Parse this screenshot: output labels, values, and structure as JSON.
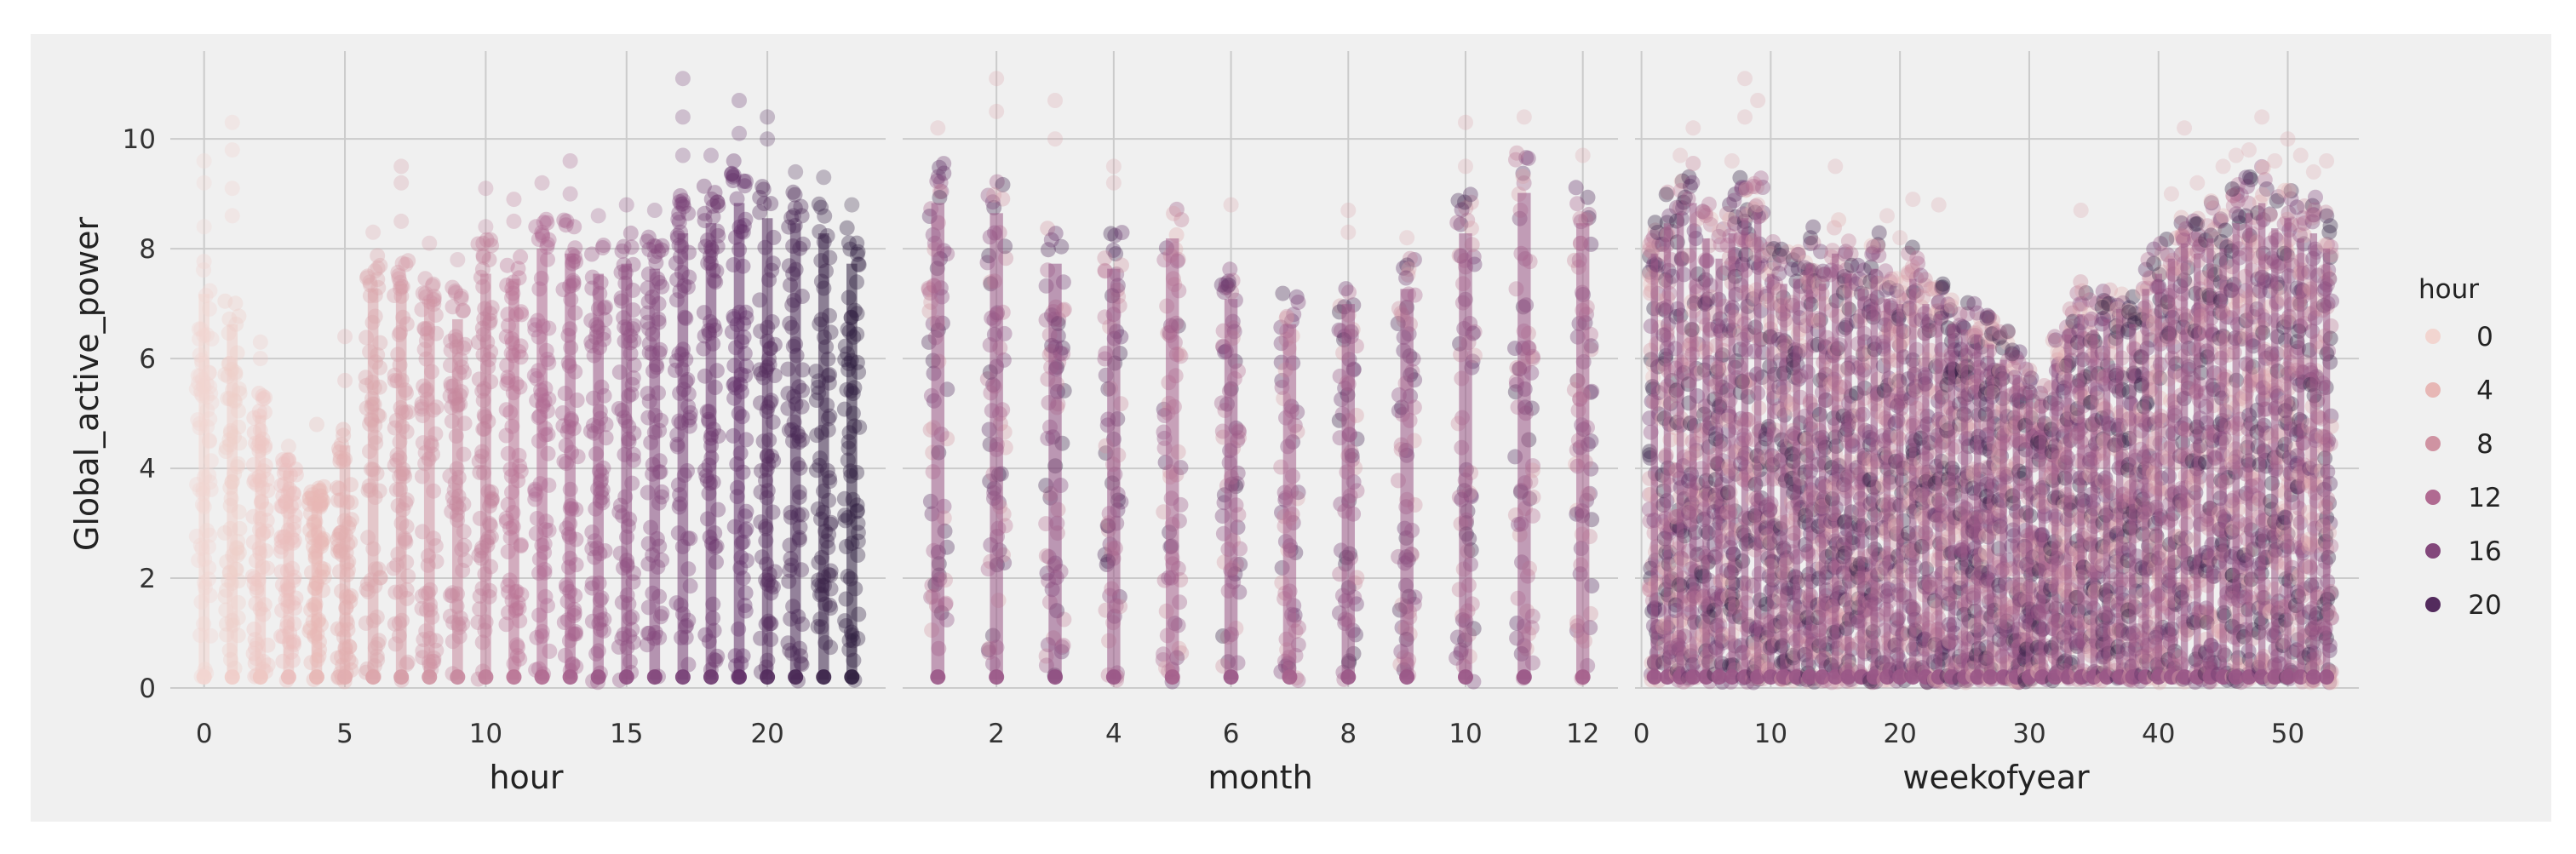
{
  "chart_data": {
    "type": "scatter",
    "description_y": "Global_active_power",
    "background": "#f0f0f0",
    "palette": [
      "#f2d5d0",
      "#e8b8b6",
      "#d196a3",
      "#b56f93",
      "#8b4c80",
      "#5e2e66",
      "#2d1e3e"
    ],
    "marker_alpha": 0.35,
    "shared_y": {
      "label": "Global_active_power",
      "ylim": [
        0,
        11.6
      ],
      "ticks": [
        0,
        2,
        4,
        6,
        8,
        10
      ],
      "tick_labels": [
        "0",
        "2",
        "4",
        "6",
        "8",
        "10"
      ]
    },
    "panels": [
      {
        "xlabel": "hour",
        "xlim": [
          -1.2,
          24.2
        ],
        "ticks": [
          0,
          5,
          10,
          15,
          20
        ],
        "tick_labels": [
          "0",
          "5",
          "10",
          "15",
          "20"
        ],
        "columns": [
          {
            "x": 0,
            "hue": 0,
            "max": 7.8,
            "outliers": [
              8.4,
              9.2,
              9.6
            ]
          },
          {
            "x": 1,
            "hue": 1,
            "max": 7.2,
            "outliers": [
              8.6,
              9.1,
              9.8,
              10.3
            ]
          },
          {
            "x": 2,
            "hue": 2,
            "max": 5.4,
            "outliers": [
              6.0,
              6.3
            ]
          },
          {
            "x": 3,
            "hue": 3,
            "max": 4.3,
            "outliers": [
              4.4
            ]
          },
          {
            "x": 4,
            "hue": 4,
            "max": 3.7,
            "outliers": [
              4.8
            ]
          },
          {
            "x": 5,
            "hue": 5,
            "max": 4.8,
            "outliers": [
              5.6,
              6.4
            ]
          },
          {
            "x": 6,
            "hue": 6,
            "max": 7.9,
            "outliers": [
              8.3
            ]
          },
          {
            "x": 7,
            "hue": 7,
            "max": 8.0,
            "outliers": [
              8.5,
              9.2,
              9.5
            ]
          },
          {
            "x": 8,
            "hue": 8,
            "max": 7.7,
            "outliers": [
              8.1
            ]
          },
          {
            "x": 9,
            "hue": 9,
            "max": 7.3,
            "outliers": [
              7.8
            ]
          },
          {
            "x": 10,
            "hue": 10,
            "max": 8.2,
            "outliers": [
              8.4,
              9.1
            ]
          },
          {
            "x": 11,
            "hue": 11,
            "max": 8.1,
            "outliers": [
              8.5,
              8.9
            ]
          },
          {
            "x": 12,
            "hue": 12,
            "max": 8.7,
            "outliers": [
              9.2
            ]
          },
          {
            "x": 13,
            "hue": 13,
            "max": 8.6,
            "outliers": [
              9.0,
              9.6
            ]
          },
          {
            "x": 14,
            "hue": 14,
            "max": 8.2,
            "outliers": [
              8.6
            ]
          },
          {
            "x": 15,
            "hue": 15,
            "max": 8.4,
            "outliers": [
              8.8
            ]
          },
          {
            "x": 16,
            "hue": 16,
            "max": 8.3,
            "outliers": [
              8.7
            ]
          },
          {
            "x": 17,
            "hue": 17,
            "max": 9.0,
            "outliers": [
              9.7,
              10.4,
              11.1
            ]
          },
          {
            "x": 18,
            "hue": 18,
            "max": 9.2,
            "outliers": [
              9.7
            ]
          },
          {
            "x": 19,
            "hue": 19,
            "max": 9.6,
            "outliers": [
              10.1,
              10.7
            ]
          },
          {
            "x": 20,
            "hue": 20,
            "max": 9.3,
            "outliers": [
              10.0,
              10.4
            ]
          },
          {
            "x": 21,
            "hue": 21,
            "max": 9.2,
            "outliers": [
              9.4
            ]
          },
          {
            "x": 22,
            "hue": 22,
            "max": 9.0,
            "outliers": [
              9.3
            ]
          },
          {
            "x": 23,
            "hue": 23,
            "max": 8.4,
            "outliers": [
              8.8
            ]
          }
        ]
      },
      {
        "xlabel": "month",
        "xlim": [
          0.4,
          12.6
        ],
        "ticks": [
          2,
          4,
          6,
          8,
          10,
          12
        ],
        "tick_labels": [
          "2",
          "4",
          "6",
          "8",
          "10",
          "12"
        ],
        "columns": [
          {
            "x": 1,
            "hue": 14,
            "max": 9.6,
            "outliers": [
              10.2
            ]
          },
          {
            "x": 2,
            "hue": 14,
            "max": 9.4,
            "outliers": [
              10.5,
              11.1
            ]
          },
          {
            "x": 3,
            "hue": 15,
            "max": 8.4,
            "outliers": [
              10.0,
              10.7
            ]
          },
          {
            "x": 4,
            "hue": 14,
            "max": 8.3,
            "outliers": [
              9.2,
              9.5
            ]
          },
          {
            "x": 5,
            "hue": 13,
            "max": 8.9,
            "outliers": []
          },
          {
            "x": 6,
            "hue": 14,
            "max": 7.7,
            "outliers": [
              8.8
            ]
          },
          {
            "x": 7,
            "hue": 13,
            "max": 7.2,
            "outliers": []
          },
          {
            "x": 8,
            "hue": 14,
            "max": 7.6,
            "outliers": [
              8.3,
              8.7
            ]
          },
          {
            "x": 9,
            "hue": 14,
            "max": 7.9,
            "outliers": [
              8.2
            ]
          },
          {
            "x": 10,
            "hue": 14,
            "max": 9.0,
            "outliers": [
              9.5,
              10.3
            ]
          },
          {
            "x": 11,
            "hue": 14,
            "max": 9.8,
            "outliers": [
              10.4
            ]
          },
          {
            "x": 12,
            "hue": 13,
            "max": 9.2,
            "outliers": [
              9.7
            ]
          }
        ]
      },
      {
        "xlabel": "weekofyear",
        "xlim": [
          -0.5,
          55.5
        ],
        "ticks": [
          0,
          10,
          20,
          30,
          40,
          50
        ],
        "tick_labels": [
          "0",
          "10",
          "20",
          "30",
          "40",
          "50"
        ],
        "columns": [
          {
            "x": 1,
            "hue": 14,
            "max": 8.6,
            "outliers": []
          },
          {
            "x": 2,
            "hue": 14,
            "max": 9.2,
            "outliers": []
          },
          {
            "x": 3,
            "hue": 14,
            "max": 9.4,
            "outliers": [
              9.7
            ]
          },
          {
            "x": 4,
            "hue": 14,
            "max": 9.6,
            "outliers": [
              10.2
            ]
          },
          {
            "x": 5,
            "hue": 14,
            "max": 8.9,
            "outliers": []
          },
          {
            "x": 6,
            "hue": 14,
            "max": 8.5,
            "outliers": []
          },
          {
            "x": 7,
            "hue": 14,
            "max": 9.0,
            "outliers": [
              9.6
            ]
          },
          {
            "x": 8,
            "hue": 14,
            "max": 9.3,
            "outliers": [
              10.4,
              11.1
            ]
          },
          {
            "x": 9,
            "hue": 14,
            "max": 9.4,
            "outliers": [
              10.7
            ]
          },
          {
            "x": 10,
            "hue": 14,
            "max": 8.2,
            "outliers": []
          },
          {
            "x": 11,
            "hue": 14,
            "max": 8.0,
            "outliers": []
          },
          {
            "x": 12,
            "hue": 14,
            "max": 8.1,
            "outliers": []
          },
          {
            "x": 13,
            "hue": 14,
            "max": 8.4,
            "outliers": []
          },
          {
            "x": 14,
            "hue": 14,
            "max": 8.0,
            "outliers": []
          },
          {
            "x": 15,
            "hue": 14,
            "max": 8.6,
            "outliers": [
              9.5
            ]
          },
          {
            "x": 16,
            "hue": 14,
            "max": 8.2,
            "outliers": []
          },
          {
            "x": 17,
            "hue": 14,
            "max": 7.9,
            "outliers": []
          },
          {
            "x": 18,
            "hue": 14,
            "max": 8.3,
            "outliers": []
          },
          {
            "x": 19,
            "hue": 14,
            "max": 7.7,
            "outliers": [
              8.6
            ]
          },
          {
            "x": 20,
            "hue": 14,
            "max": 7.6,
            "outliers": [
              8.2
            ]
          },
          {
            "x": 21,
            "hue": 14,
            "max": 8.1,
            "outliers": [
              8.9
            ]
          },
          {
            "x": 22,
            "hue": 14,
            "max": 7.6,
            "outliers": []
          },
          {
            "x": 23,
            "hue": 14,
            "max": 7.4,
            "outliers": [
              8.8
            ]
          },
          {
            "x": 24,
            "hue": 14,
            "max": 7.2,
            "outliers": []
          },
          {
            "x": 25,
            "hue": 14,
            "max": 7.1,
            "outliers": []
          },
          {
            "x": 26,
            "hue": 14,
            "max": 7.0,
            "outliers": []
          },
          {
            "x": 27,
            "hue": 14,
            "max": 6.8,
            "outliers": []
          },
          {
            "x": 28,
            "hue": 14,
            "max": 6.5,
            "outliers": []
          },
          {
            "x": 29,
            "hue": 14,
            "max": 6.2,
            "outliers": []
          },
          {
            "x": 30,
            "hue": 14,
            "max": 5.9,
            "outliers": []
          },
          {
            "x": 31,
            "hue": 14,
            "max": 5.7,
            "outliers": []
          },
          {
            "x": 32,
            "hue": 14,
            "max": 6.4,
            "outliers": []
          },
          {
            "x": 33,
            "hue": 14,
            "max": 7.0,
            "outliers": []
          },
          {
            "x": 34,
            "hue": 14,
            "max": 7.4,
            "outliers": [
              8.7
            ]
          },
          {
            "x": 35,
            "hue": 14,
            "max": 7.1,
            "outliers": []
          },
          {
            "x": 36,
            "hue": 14,
            "max": 7.3,
            "outliers": []
          },
          {
            "x": 37,
            "hue": 14,
            "max": 7.5,
            "outliers": []
          },
          {
            "x": 38,
            "hue": 14,
            "max": 7.2,
            "outliers": []
          },
          {
            "x": 39,
            "hue": 14,
            "max": 7.9,
            "outliers": []
          },
          {
            "x": 40,
            "hue": 14,
            "max": 8.2,
            "outliers": []
          },
          {
            "x": 41,
            "hue": 14,
            "max": 8.5,
            "outliers": [
              9.0
            ]
          },
          {
            "x": 42,
            "hue": 14,
            "max": 8.8,
            "outliers": [
              10.2
            ]
          },
          {
            "x": 43,
            "hue": 14,
            "max": 8.6,
            "outliers": [
              9.2
            ]
          },
          {
            "x": 44,
            "hue": 14,
            "max": 8.9,
            "outliers": []
          },
          {
            "x": 45,
            "hue": 14,
            "max": 8.7,
            "outliers": [
              9.5
            ]
          },
          {
            "x": 46,
            "hue": 14,
            "max": 9.2,
            "outliers": [
              9.7
            ]
          },
          {
            "x": 47,
            "hue": 14,
            "max": 9.4,
            "outliers": [
              9.8
            ]
          },
          {
            "x": 48,
            "hue": 14,
            "max": 9.6,
            "outliers": [
              10.4
            ]
          },
          {
            "x": 49,
            "hue": 14,
            "max": 9.1,
            "outliers": [
              9.6
            ]
          },
          {
            "x": 50,
            "hue": 14,
            "max": 9.3,
            "outliers": [
              10.0
            ]
          },
          {
            "x": 51,
            "hue": 14,
            "max": 8.9,
            "outliers": [
              9.7
            ]
          },
          {
            "x": 52,
            "hue": 14,
            "max": 9.0,
            "outliers": [
              9.4
            ]
          },
          {
            "x": 53,
            "hue": 14,
            "max": 8.7,
            "outliers": [
              9.6
            ]
          }
        ]
      }
    ],
    "legend": {
      "title": "hour",
      "placement": "right",
      "entries": [
        {
          "label": "0",
          "hue": 0
        },
        {
          "label": "4",
          "hue": 4
        },
        {
          "label": "8",
          "hue": 8
        },
        {
          "label": "12",
          "hue": 12
        },
        {
          "label": "16",
          "hue": 16
        },
        {
          "label": "20",
          "hue": 20
        }
      ]
    }
  }
}
